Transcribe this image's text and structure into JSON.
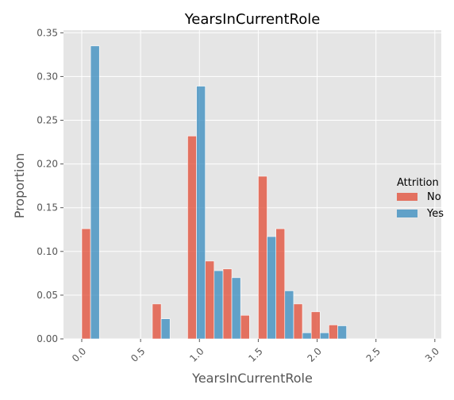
{
  "chart_data": {
    "type": "bar",
    "title": "YearsInCurrentRole",
    "xlabel": "YearsInCurrentRole",
    "ylabel": "Proportion",
    "xlim": [
      -0.155,
      3.055
    ],
    "ylim": [
      0,
      0.353
    ],
    "xticks": [
      0.0,
      0.5,
      1.0,
      1.5,
      2.0,
      2.5,
      3.0
    ],
    "xtick_labels": [
      "0.0",
      "0.5",
      "1.0",
      "1.5",
      "2.0",
      "2.5",
      "3.0"
    ],
    "yticks": [
      0.0,
      0.05,
      0.1,
      0.15,
      0.2,
      0.25,
      0.3,
      0.35
    ],
    "ytick_labels": [
      "0.00",
      "0.05",
      "0.10",
      "0.15",
      "0.20",
      "0.25",
      "0.30",
      "0.35"
    ],
    "bin_edges": [
      0.0,
      0.15,
      0.3,
      0.45,
      0.6,
      0.75,
      0.9,
      1.05,
      1.2,
      1.35,
      1.5,
      1.65,
      1.8,
      1.95,
      2.1,
      2.25,
      2.4,
      2.55,
      2.7,
      2.85,
      3.0
    ],
    "series": [
      {
        "name": "No",
        "values": [
          0.126,
          0,
          0,
          0,
          0.04,
          0,
          0.232,
          0.089,
          0.08,
          0.027,
          0.186,
          0.126,
          0.04,
          0.031,
          0.016,
          0,
          0,
          0,
          0,
          0
        ]
      },
      {
        "name": "Yes",
        "values": [
          0.335,
          0,
          0,
          0,
          0.023,
          0,
          0.289,
          0.078,
          0.07,
          0,
          0.117,
          0.055,
          0.007,
          0.007,
          0.015,
          0,
          0,
          0,
          0,
          0
        ]
      }
    ],
    "bar_positions": [
      0.0,
      0.6,
      1.0,
      1.2,
      1.4,
      1.6,
      1.9,
      2.1,
      2.3,
      2.5,
      2.7
    ],
    "legend": {
      "title": "Attrition",
      "entries": [
        "No",
        "Yes"
      ],
      "placement": "right"
    },
    "grid": true,
    "colors": {
      "No": "#E24A33",
      "Yes": "#348ABD",
      "panel": "#E5E5E5",
      "grid": "#FFFFFF"
    }
  }
}
